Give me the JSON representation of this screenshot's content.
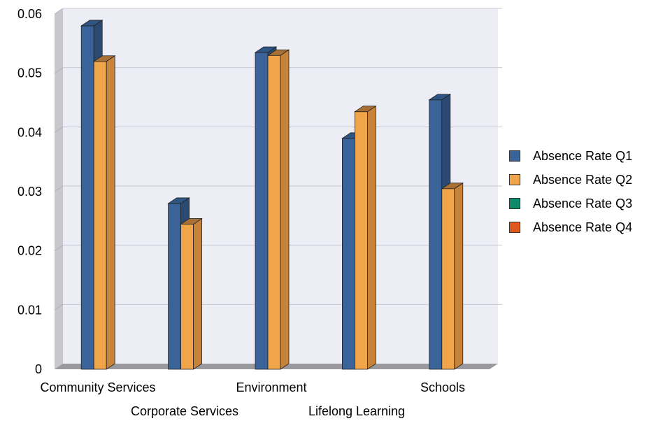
{
  "chart_data": {
    "type": "bar",
    "title": "",
    "xlabel": "",
    "ylabel": "",
    "ylim": [
      0,
      0.06
    ],
    "yticks": [
      "0",
      "0.01",
      "0.02",
      "0.03",
      "0.04",
      "0.05",
      "0.06"
    ],
    "categories": [
      "Community Services",
      "Corporate Services",
      "Environment",
      "Lifelong Learning",
      "Schools"
    ],
    "series": [
      {
        "name": "Absence Rate Q1",
        "color": "#3a6399",
        "side": "#2b4a73",
        "top": "#2f5585",
        "values": [
          0.058,
          0.028,
          0.0535,
          0.039,
          0.0455
        ]
      },
      {
        "name": "Absence Rate Q2",
        "color": "#f0a54b",
        "side": "#c7833a",
        "top": "#a87034",
        "values": [
          0.052,
          0.0245,
          0.053,
          0.0435,
          0.0305
        ]
      },
      {
        "name": "Absence Rate Q3",
        "color": "#0f8a6a",
        "values": [
          null,
          null,
          null,
          null,
          null
        ]
      },
      {
        "name": "Absence Rate Q4",
        "color": "#e0561f",
        "values": [
          null,
          null,
          null,
          null,
          null
        ]
      }
    ],
    "legend_position": "right",
    "grid": true
  }
}
